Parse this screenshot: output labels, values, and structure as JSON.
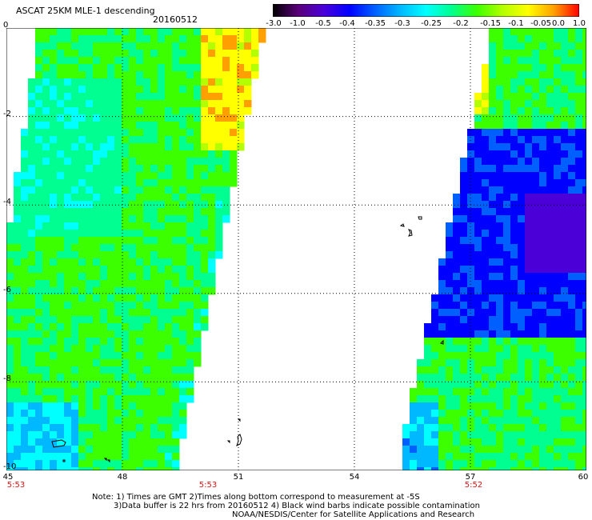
{
  "header": {
    "title": "ASCAT 25KM MLE-1 descending",
    "date": "20160512"
  },
  "colorbar": {
    "labels": [
      "-3.0",
      "-1.0",
      "-0.5",
      "-0.4",
      "-0.35",
      "-0.3",
      "-0.25",
      "-0.2",
      "-0.15",
      "-0.1",
      "-0.05",
      "0.0",
      "1.0"
    ],
    "stops": [
      "#000000",
      "#5a007a",
      "#4b00d8",
      "#0000ff",
      "#0060ff",
      "#00b8ff",
      "#00ffff",
      "#00ff90",
      "#3cff00",
      "#b4ff00",
      "#ffff00",
      "#ffa000",
      "#ff0000"
    ]
  },
  "map": {
    "lon_range": [
      45,
      60
    ],
    "lat_range": [
      0,
      -10
    ],
    "x_ticks": [
      "45",
      "48",
      "51",
      "54",
      "57",
      "60"
    ],
    "y_ticks": [
      "0",
      "-2",
      "-4",
      "-6",
      "-8",
      "-10"
    ],
    "grid": true
  },
  "times": [
    "5:53",
    "5:53",
    "5:52"
  ],
  "notes": {
    "line1": "Note: 1) Times are GMT 2)Times along bottom correspond to measurement at -5S",
    "line2": "3)Data buffer is 22 hrs from 20160512 4) Black wind barbs indicate possible contamination",
    "credit": "NOAA/NESDIS/Center for Satellite Applications and Research"
  }
}
